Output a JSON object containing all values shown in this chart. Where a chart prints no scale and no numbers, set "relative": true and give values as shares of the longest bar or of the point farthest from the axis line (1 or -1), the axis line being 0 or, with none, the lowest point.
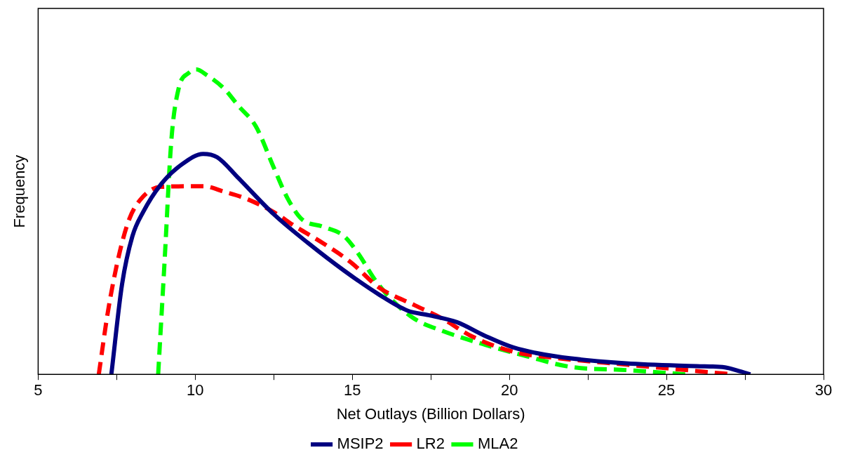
{
  "chart_data": {
    "type": "line",
    "xlabel": "Net Outlays (Billion Dollars)",
    "ylabel": "Frequency",
    "relative": true,
    "legend": "bottom",
    "marker": "none",
    "xlim": [
      5,
      30
    ],
    "xticks": [
      5,
      {
        "value": 7.5,
        "label": null
      },
      10,
      {
        "value": 12.5,
        "label": null
      },
      15,
      {
        "value": 17.5,
        "label": null
      },
      20,
      {
        "value": 22.5,
        "label": null
      },
      25,
      {
        "value": 27.5,
        "label": null
      },
      30
    ],
    "series": [
      {
        "name": "MSIP2",
        "color": "#000080",
        "line_style": "solid",
        "x": [
          7.33,
          7.67,
          8.0,
          8.34,
          8.9,
          9.58,
          10.25,
          10.7,
          11.37,
          12.5,
          13.6,
          14.74,
          15.86,
          16.76,
          17.43,
          18.33,
          19.23,
          20.13,
          21.47,
          23.72,
          25.96,
          26.86,
          27.3,
          27.67
        ],
        "values": [
          0,
          0.295,
          0.453,
          0.532,
          0.622,
          0.689,
          0.723,
          0.712,
          0.644,
          0.525,
          0.43,
          0.34,
          0.261,
          0.209,
          0.194,
          0.171,
          0.126,
          0.088,
          0.059,
          0.036,
          0.027,
          0.023,
          0.011,
          0
        ]
      },
      {
        "name": "LR2",
        "color": "#ff0000",
        "line_style": "dashed",
        "x": [
          6.93,
          7.22,
          7.56,
          7.9,
          8.34,
          8.9,
          10.25,
          10.92,
          11.6,
          12.5,
          13.17,
          14.07,
          14.96,
          15.86,
          16.98,
          17.88,
          18.78,
          20.13,
          21.47,
          23.72,
          25.96,
          27.08
        ],
        "values": [
          0,
          0.205,
          0.385,
          0.509,
          0.583,
          0.615,
          0.617,
          0.599,
          0.577,
          0.532,
          0.486,
          0.43,
          0.367,
          0.284,
          0.227,
          0.182,
          0.126,
          0.074,
          0.054,
          0.032,
          0.011,
          0
        ]
      },
      {
        "name": "MLA2",
        "color": "#00ff00",
        "line_style": "dashed",
        "x": [
          8.82,
          9.02,
          9.24,
          9.47,
          9.8,
          10.03,
          10.36,
          10.92,
          11.37,
          11.93,
          12.5,
          12.94,
          13.39,
          14.07,
          14.74,
          15.19,
          15.75,
          16.31,
          16.98,
          17.88,
          19.23,
          20.57,
          21.92,
          23.72,
          25.62
        ],
        "values": [
          0,
          0.363,
          0.768,
          0.937,
          0.989,
          1,
          0.982,
          0.937,
          0.881,
          0.813,
          0.678,
          0.577,
          0.509,
          0.484,
          0.453,
          0.396,
          0.306,
          0.239,
          0.182,
          0.142,
          0.097,
          0.059,
          0.025,
          0.014,
          0
        ]
      }
    ]
  }
}
